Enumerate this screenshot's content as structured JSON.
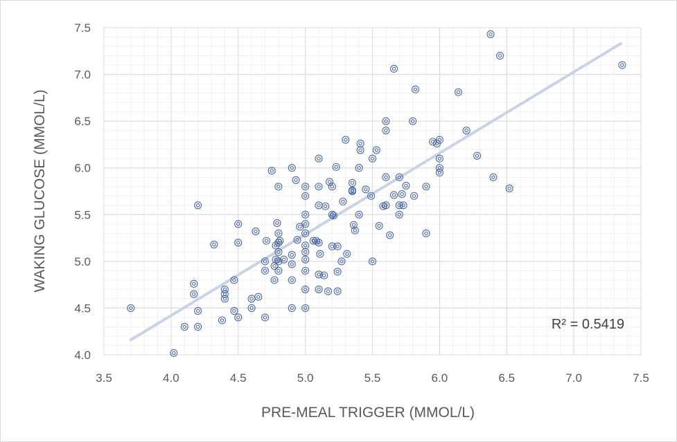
{
  "chart_data": {
    "type": "scatter",
    "xlabel": "PRE-MEAL TRIGGER (MMOL/L)",
    "ylabel": "WAKING GLUCOSE (MMOL/L)",
    "xlim": [
      3.5,
      7.5
    ],
    "ylim": [
      4.0,
      7.5
    ],
    "x_ticks": [
      "3.5",
      "4.0",
      "4.5",
      "5.0",
      "5.5",
      "6.0",
      "6.5",
      "7.0",
      "7.5"
    ],
    "y_ticks": [
      "4.0",
      "4.5",
      "5.0",
      "5.5",
      "6.0",
      "6.5",
      "7.0",
      "7.5"
    ],
    "grid": true,
    "marker_color": "#2f4f8f",
    "trendline_color": "#c9d3e4",
    "trendline": {
      "type": "linear",
      "x": [
        3.7,
        7.35
      ],
      "y": [
        4.16,
        7.33
      ]
    },
    "annotation": "R² = 0.5419",
    "points": [
      [
        3.7,
        4.5
      ],
      [
        4.02,
        4.02
      ],
      [
        4.1,
        4.3
      ],
      [
        4.17,
        4.76
      ],
      [
        4.17,
        4.65
      ],
      [
        4.2,
        4.47
      ],
      [
        4.2,
        4.3
      ],
      [
        4.2,
        5.6
      ],
      [
        4.32,
        5.18
      ],
      [
        4.38,
        4.37
      ],
      [
        4.4,
        4.7
      ],
      [
        4.4,
        4.65
      ],
      [
        4.4,
        4.6
      ],
      [
        4.47,
        4.8
      ],
      [
        4.47,
        4.47
      ],
      [
        4.5,
        4.4
      ],
      [
        4.5,
        5.2
      ],
      [
        4.5,
        5.4
      ],
      [
        4.6,
        4.6
      ],
      [
        4.6,
        4.5
      ],
      [
        4.63,
        5.32
      ],
      [
        4.65,
        4.62
      ],
      [
        4.7,
        4.4
      ],
      [
        4.7,
        4.9
      ],
      [
        4.7,
        5.0
      ],
      [
        4.71,
        5.22
      ],
      [
        4.75,
        5.97
      ],
      [
        4.77,
        4.95
      ],
      [
        4.77,
        4.8
      ],
      [
        4.78,
        5.02
      ],
      [
        4.78,
        5.17
      ],
      [
        4.79,
        5.41
      ],
      [
        4.8,
        5.8
      ],
      [
        4.8,
        5.3
      ],
      [
        4.8,
        5.2
      ],
      [
        4.8,
        5.1
      ],
      [
        4.8,
        5.0
      ],
      [
        4.8,
        4.9
      ],
      [
        4.81,
        5.22
      ],
      [
        4.84,
        5.02
      ],
      [
        4.9,
        4.5
      ],
      [
        4.9,
        4.8
      ],
      [
        4.9,
        4.97
      ],
      [
        4.9,
        5.07
      ],
      [
        4.9,
        6.0
      ],
      [
        4.93,
        5.87
      ],
      [
        4.94,
        5.23
      ],
      [
        4.96,
        5.37
      ],
      [
        5.0,
        4.5
      ],
      [
        5.0,
        4.7
      ],
      [
        5.0,
        4.9
      ],
      [
        5.0,
        5.02
      ],
      [
        5.0,
        5.1
      ],
      [
        5.0,
        5.17
      ],
      [
        5.0,
        5.3
      ],
      [
        5.0,
        5.4
      ],
      [
        5.0,
        5.5
      ],
      [
        5.0,
        5.7
      ],
      [
        5.0,
        5.8
      ],
      [
        5.06,
        5.22
      ],
      [
        5.08,
        5.22
      ],
      [
        5.1,
        4.86
      ],
      [
        5.1,
        4.7
      ],
      [
        5.1,
        5.2
      ],
      [
        5.1,
        5.6
      ],
      [
        5.1,
        5.8
      ],
      [
        5.1,
        6.1
      ],
      [
        5.11,
        5.08
      ],
      [
        5.14,
        4.85
      ],
      [
        5.15,
        5.59
      ],
      [
        5.17,
        4.68
      ],
      [
        5.18,
        5.85
      ],
      [
        5.2,
        5.5
      ],
      [
        5.2,
        5.16
      ],
      [
        5.2,
        5.8
      ],
      [
        5.21,
        5.49
      ],
      [
        5.23,
        6.01
      ],
      [
        5.24,
        5.16
      ],
      [
        5.24,
        4.68
      ],
      [
        5.24,
        4.89
      ],
      [
        5.27,
        5.0
      ],
      [
        5.28,
        5.64
      ],
      [
        5.3,
        6.3
      ],
      [
        5.31,
        5.08
      ],
      [
        5.35,
        5.84
      ],
      [
        5.35,
        5.76
      ],
      [
        5.35,
        5.75
      ],
      [
        5.36,
        5.39
      ],
      [
        5.37,
        5.33
      ],
      [
        5.4,
        5.5
      ],
      [
        5.4,
        6.0
      ],
      [
        5.41,
        6.19
      ],
      [
        5.41,
        6.26
      ],
      [
        5.45,
        5.77
      ],
      [
        5.49,
        5.7
      ],
      [
        5.5,
        5.0
      ],
      [
        5.5,
        6.1
      ],
      [
        5.53,
        6.19
      ],
      [
        5.55,
        5.38
      ],
      [
        5.58,
        5.59
      ],
      [
        5.6,
        5.9
      ],
      [
        5.6,
        5.6
      ],
      [
        5.6,
        6.4
      ],
      [
        5.6,
        6.5
      ],
      [
        5.63,
        5.28
      ],
      [
        5.66,
        7.06
      ],
      [
        5.66,
        5.71
      ],
      [
        5.7,
        5.5
      ],
      [
        5.7,
        5.6
      ],
      [
        5.7,
        5.9
      ],
      [
        5.72,
        5.72
      ],
      [
        5.73,
        5.6
      ],
      [
        5.75,
        5.81
      ],
      [
        5.8,
        6.5
      ],
      [
        5.81,
        5.7
      ],
      [
        5.82,
        6.84
      ],
      [
        5.9,
        5.3
      ],
      [
        5.9,
        5.8
      ],
      [
        5.95,
        6.28
      ],
      [
        5.98,
        6.26
      ],
      [
        6.0,
        6.3
      ],
      [
        6.0,
        6.1
      ],
      [
        6.0,
        6.0
      ],
      [
        6.0,
        5.95
      ],
      [
        6.14,
        6.81
      ],
      [
        6.2,
        6.4
      ],
      [
        6.28,
        6.13
      ],
      [
        6.38,
        7.43
      ],
      [
        6.4,
        5.9
      ],
      [
        6.45,
        7.2
      ],
      [
        6.52,
        5.78
      ],
      [
        7.36,
        7.1
      ]
    ]
  }
}
